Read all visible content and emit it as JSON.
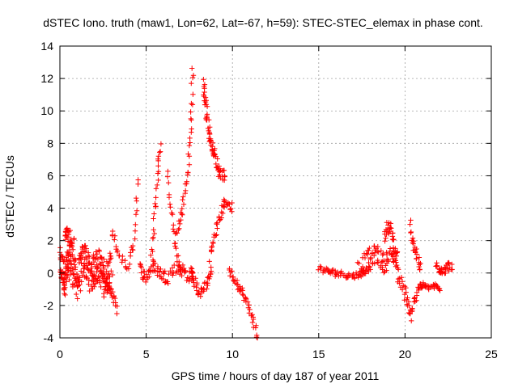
{
  "chart_data": {
    "type": "scatter",
    "title": "dSTEC Iono. truth (maw1, Lon=62, Lat=-67, h=59): STEC-STEC_elemax in phase cont.",
    "xlabel": "GPS time / hours of day 187 of year 2011",
    "ylabel": "dSTEC  / TECUs",
    "xlim": [
      0,
      25
    ],
    "ylim": [
      -4,
      14
    ],
    "xticks": [
      0,
      5,
      10,
      15,
      20,
      25
    ],
    "yticks": [
      -4,
      -2,
      0,
      2,
      4,
      6,
      8,
      10,
      12,
      14
    ],
    "grid": true,
    "marker": "+",
    "color": "#ff0000",
    "segments": [
      {
        "x": [
          0.0,
          0.3,
          0.6,
          1.0,
          1.4,
          1.8,
          2.2,
          2.6,
          3.0
        ],
        "y": [
          0.5,
          -0.3,
          0.8,
          -0.6,
          1.0,
          -0.2,
          0.6,
          -0.4,
          0.3
        ],
        "jitter": 1.1,
        "points": 260
      },
      {
        "x": [
          0.3,
          0.5,
          0.8
        ],
        "y": [
          2.6,
          2.2,
          1.8
        ],
        "jitter": 0.5,
        "points": 30
      },
      {
        "x": [
          2.5,
          3.0,
          3.3
        ],
        "y": [
          -0.3,
          -1.2,
          -2.3
        ],
        "jitter": 0.3,
        "points": 20
      },
      {
        "x": [
          3.0,
          3.4,
          3.9,
          4.3,
          4.5
        ],
        "y": [
          2.5,
          1.2,
          0.3,
          2.0,
          5.8
        ],
        "jitter": 0.3,
        "points": 35
      },
      {
        "x": [
          4.6,
          5.0,
          5.4,
          5.8,
          6.2,
          6.8,
          7.2,
          7.6
        ],
        "y": [
          0.3,
          -0.3,
          0.5,
          0.0,
          -0.3,
          0.4,
          0.1,
          -0.3
        ],
        "jitter": 0.4,
        "points": 80
      },
      {
        "x": [
          5.3,
          5.5,
          5.7,
          5.8
        ],
        "y": [
          1.0,
          3.5,
          6.2,
          7.8
        ],
        "jitter": 0.3,
        "points": 25
      },
      {
        "x": [
          6.2,
          6.4,
          6.6,
          6.8,
          7.0
        ],
        "y": [
          6.0,
          4.2,
          2.5,
          1.0,
          0.2
        ],
        "jitter": 0.3,
        "points": 25
      },
      {
        "x": [
          6.8,
          7.1,
          7.4,
          7.6,
          7.7
        ],
        "y": [
          2.2,
          4.0,
          6.0,
          9.0,
          12.6
        ],
        "jitter": 0.3,
        "points": 40
      },
      {
        "x": [
          7.6,
          7.8,
          8.1,
          8.5,
          8.8
        ],
        "y": [
          0.2,
          -0.5,
          -1.3,
          -0.6,
          0.1
        ],
        "jitter": 0.35,
        "points": 45
      },
      {
        "x": [
          8.3,
          8.5,
          8.7,
          8.9,
          9.2,
          9.6
        ],
        "y": [
          11.8,
          10.0,
          8.3,
          7.5,
          6.3,
          6.0
        ],
        "jitter": 0.35,
        "points": 70
      },
      {
        "x": [
          8.7,
          9.0,
          9.3,
          9.6,
          10.0
        ],
        "y": [
          1.0,
          2.5,
          3.5,
          4.5,
          4.0
        ],
        "jitter": 0.3,
        "points": 40
      },
      {
        "x": [
          9.8,
          10.2,
          10.6,
          11.0,
          11.5
        ],
        "y": [
          0.2,
          -0.5,
          -1.3,
          -2.3,
          -4.0
        ],
        "jitter": 0.3,
        "points": 45
      },
      {
        "x": [
          15.0,
          15.5,
          16.0,
          16.5,
          17.0,
          17.5,
          18.0
        ],
        "y": [
          0.3,
          0.1,
          0.0,
          -0.1,
          -0.2,
          0.0,
          0.3
        ],
        "jitter": 0.2,
        "points": 60
      },
      {
        "x": [
          17.3,
          17.8,
          18.3,
          18.8,
          19.3,
          19.6
        ],
        "y": [
          0.2,
          0.8,
          1.2,
          0.6,
          1.2,
          0.8
        ],
        "jitter": 0.6,
        "points": 90
      },
      {
        "x": [
          18.8,
          19.1,
          19.4
        ],
        "y": [
          2.2,
          3.0,
          2.0
        ],
        "jitter": 0.4,
        "points": 25
      },
      {
        "x": [
          19.6,
          20.0,
          20.3,
          20.6,
          21.0
        ],
        "y": [
          -0.3,
          -1.2,
          -2.7,
          -1.5,
          -0.8
        ],
        "jitter": 0.4,
        "points": 45
      },
      {
        "x": [
          20.3,
          20.5,
          20.7,
          20.9
        ],
        "y": [
          3.0,
          1.8,
          1.0,
          0.3
        ],
        "jitter": 0.4,
        "points": 25
      },
      {
        "x": [
          20.9,
          21.3,
          21.7,
          22.0
        ],
        "y": [
          -0.8,
          -0.9,
          -0.8,
          -1.0
        ],
        "jitter": 0.15,
        "points": 30
      },
      {
        "x": [
          21.8,
          22.2,
          22.7
        ],
        "y": [
          0.4,
          0.2,
          0.5
        ],
        "jitter": 0.3,
        "points": 35
      }
    ]
  }
}
